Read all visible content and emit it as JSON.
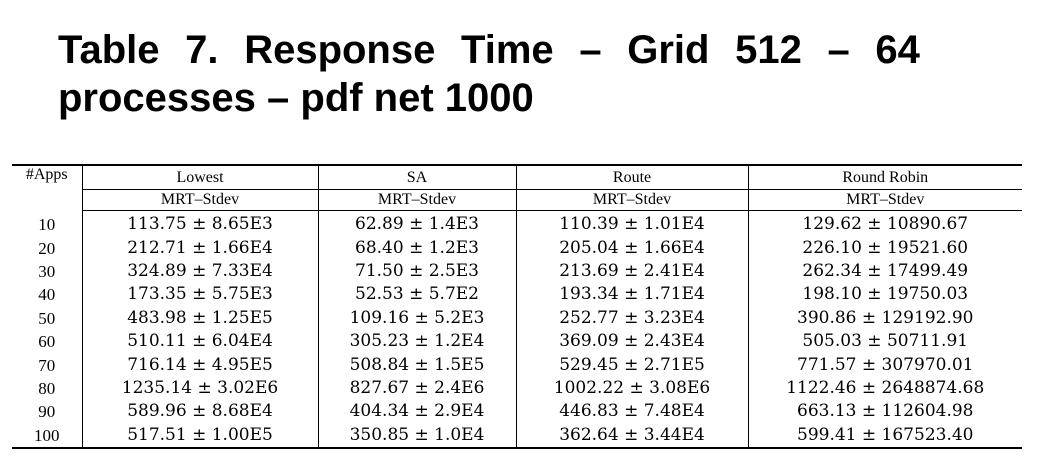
{
  "title": {
    "line1": [
      "Table",
      "7.",
      "Response",
      "Time",
      "–",
      "Grid",
      "512",
      "–",
      "64"
    ],
    "line2": "processes – pdf net 1000"
  },
  "table": {
    "row_header": "#Apps",
    "columns": [
      "Lowest",
      "SA",
      "Route",
      "Round Robin"
    ],
    "subheader": "MRT–Stdev",
    "rows": [
      {
        "apps": "10",
        "values": [
          "113.75 ± 8.65E3",
          "62.89 ± 1.4E3",
          "110.39 ± 1.01E4",
          "129.62 ± 10890.67"
        ]
      },
      {
        "apps": "20",
        "values": [
          "212.71 ± 1.66E4",
          "68.40 ± 1.2E3",
          "205.04 ± 1.66E4",
          "226.10 ± 19521.60"
        ]
      },
      {
        "apps": "30",
        "values": [
          "324.89 ± 7.33E4",
          "71.50 ± 2.5E3",
          "213.69 ± 2.41E4",
          "262.34 ± 17499.49"
        ]
      },
      {
        "apps": "40",
        "values": [
          "173.35 ± 5.75E3",
          "52.53 ± 5.7E2",
          "193.34 ± 1.71E4",
          "198.10 ± 19750.03"
        ]
      },
      {
        "apps": "50",
        "values": [
          "483.98 ± 1.25E5",
          "109.16 ± 5.2E3",
          "252.77 ± 3.23E4",
          "390.86 ± 129192.90"
        ]
      },
      {
        "apps": "60",
        "values": [
          "510.11 ± 6.04E4",
          "305.23 ± 1.2E4",
          "369.09 ± 2.43E4",
          "505.03 ± 50711.91"
        ]
      },
      {
        "apps": "70",
        "values": [
          "716.14 ± 4.95E5",
          "508.84 ± 1.5E5",
          "529.45 ± 2.71E5",
          "771.57 ± 307970.01"
        ]
      },
      {
        "apps": "80",
        "values": [
          "1235.14 ± 3.02E6",
          "827.67 ± 2.4E6",
          "1002.22 ± 3.08E6",
          "1122.46 ± 2648874.68"
        ]
      },
      {
        "apps": "90",
        "values": [
          "589.96 ± 8.68E4",
          "404.34 ± 2.9E4",
          "446.83 ± 7.48E4",
          "663.13 ± 112604.98"
        ]
      },
      {
        "apps": "100",
        "values": [
          "517.51 ± 1.00E5",
          "350.85 ± 1.0E4",
          "362.64 ± 3.44E4",
          "599.41 ± 167523.40"
        ]
      }
    ]
  }
}
